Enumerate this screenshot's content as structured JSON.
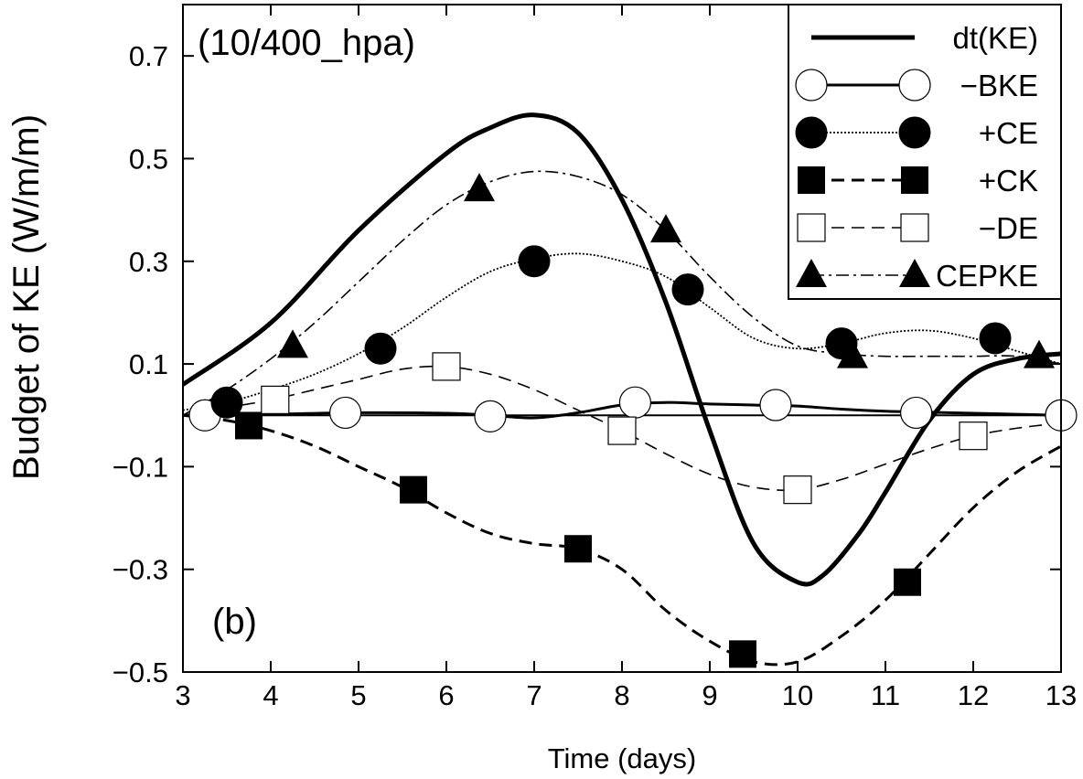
{
  "chart_data": {
    "type": "line",
    "annotation_top": "(10/400_hpa)",
    "panel_label": "(b)",
    "xlabel": "Time (days)",
    "ylabel": "Budget of KE (W/m/m)",
    "xlim": [
      3,
      13
    ],
    "ylim": [
      -0.5,
      0.8
    ],
    "xticks": [
      3,
      4,
      5,
      6,
      7,
      8,
      9,
      10,
      11,
      12,
      13
    ],
    "yticks": [
      -0.5,
      -0.3,
      -0.1,
      0.1,
      0.3,
      0.5,
      0.7
    ],
    "ytick_labels": [
      "−0.5",
      "−0.3",
      "−0.1",
      "0.1",
      "0.3",
      "0.5",
      "0.7"
    ],
    "zero_line": true,
    "legend_position": "top-right",
    "series": [
      {
        "name": "dt(KE)",
        "style": "solid-thick",
        "marker": "none",
        "x": [
          3.0,
          4.0,
          5.0,
          6.0,
          6.5,
          7.0,
          7.5,
          8.0,
          8.5,
          9.0,
          9.5,
          10.0,
          10.3,
          10.7,
          11.0,
          11.5,
          12.0,
          12.5,
          13.0
        ],
        "y": [
          0.06,
          0.18,
          0.36,
          0.51,
          0.56,
          0.585,
          0.55,
          0.42,
          0.22,
          -0.03,
          -0.25,
          -0.325,
          -0.31,
          -0.23,
          -0.15,
          -0.01,
          0.08,
          0.11,
          0.12
        ]
      },
      {
        "name": "−BKE",
        "style": "solid-medium",
        "marker": "open-circle",
        "x": [
          3.0,
          3.5,
          4.0,
          5.0,
          6.0,
          6.5,
          7.0,
          7.5,
          8.0,
          8.5,
          9.0,
          9.5,
          10.0,
          10.5,
          11.0,
          11.5,
          12.0,
          12.5,
          13.0
        ],
        "y": [
          0.0,
          0.0,
          0.002,
          0.005,
          0.004,
          0.0,
          -0.005,
          0.005,
          0.02,
          0.025,
          0.022,
          0.02,
          0.018,
          0.012,
          0.008,
          0.006,
          0.004,
          0.002,
          0.0
        ],
        "markers_x": [
          3.25,
          4.85,
          6.5,
          8.15,
          9.75,
          11.35,
          13.0
        ],
        "markers_y": [
          0.0,
          0.005,
          -0.002,
          0.025,
          0.02,
          0.005,
          0.0
        ]
      },
      {
        "name": "+CE",
        "style": "dotted",
        "marker": "filled-circle",
        "x": [
          3.0,
          3.5,
          4.0,
          4.5,
          5.0,
          5.5,
          6.0,
          6.5,
          7.0,
          7.5,
          8.0,
          8.5,
          9.0,
          9.5,
          10.0,
          10.5,
          11.0,
          11.5,
          12.0,
          12.5,
          13.0
        ],
        "y": [
          0.01,
          0.025,
          0.05,
          0.08,
          0.12,
          0.17,
          0.23,
          0.28,
          0.305,
          0.315,
          0.3,
          0.27,
          0.21,
          0.15,
          0.13,
          0.14,
          0.16,
          0.165,
          0.15,
          0.125,
          0.1
        ],
        "markers_x": [
          3.5,
          5.25,
          7.0,
          8.75,
          10.5,
          12.25
        ],
        "markers_y": [
          0.025,
          0.13,
          0.3,
          0.245,
          0.14,
          0.15
        ]
      },
      {
        "name": "+CK",
        "style": "dashed-thick",
        "marker": "filled-square",
        "x": [
          3.0,
          3.5,
          4.0,
          4.5,
          5.0,
          5.5,
          6.0,
          6.5,
          7.0,
          7.5,
          8.0,
          8.5,
          9.0,
          9.5,
          10.0,
          10.5,
          11.0,
          11.5,
          12.0,
          12.5,
          13.0
        ],
        "y": [
          0.0,
          -0.01,
          -0.03,
          -0.06,
          -0.1,
          -0.14,
          -0.19,
          -0.23,
          -0.25,
          -0.26,
          -0.3,
          -0.38,
          -0.44,
          -0.48,
          -0.48,
          -0.43,
          -0.36,
          -0.27,
          -0.18,
          -0.11,
          -0.06
        ],
        "markers_x": [
          3.75,
          5.625,
          7.5,
          9.375,
          11.25
        ],
        "markers_y": [
          -0.02,
          -0.145,
          -0.26,
          -0.465,
          -0.325
        ]
      },
      {
        "name": "−DE",
        "style": "dashed-thin",
        "marker": "open-square",
        "x": [
          3.0,
          3.5,
          4.0,
          4.5,
          5.0,
          5.5,
          6.0,
          6.5,
          7.0,
          7.5,
          8.0,
          8.5,
          9.0,
          9.5,
          10.0,
          10.5,
          11.0,
          11.5,
          12.0,
          12.5,
          13.0
        ],
        "y": [
          0.0,
          0.015,
          0.03,
          0.05,
          0.07,
          0.09,
          0.095,
          0.08,
          0.05,
          0.01,
          -0.03,
          -0.075,
          -0.115,
          -0.14,
          -0.145,
          -0.125,
          -0.095,
          -0.065,
          -0.04,
          -0.025,
          -0.015
        ],
        "markers_x": [
          4.05,
          6.0,
          8.0,
          10.0,
          12.0
        ],
        "markers_y": [
          0.03,
          0.095,
          -0.03,
          -0.145,
          -0.04
        ]
      },
      {
        "name": "CEPKE",
        "style": "dash-dot",
        "marker": "filled-triangle",
        "x": [
          3.0,
          3.5,
          4.0,
          4.5,
          5.0,
          5.5,
          6.0,
          6.5,
          7.0,
          7.5,
          8.0,
          8.5,
          9.0,
          9.5,
          10.0,
          10.5,
          11.0,
          11.5,
          12.0,
          12.5,
          13.0
        ],
        "y": [
          0.0,
          0.05,
          0.11,
          0.18,
          0.26,
          0.34,
          0.41,
          0.455,
          0.475,
          0.465,
          0.43,
          0.36,
          0.27,
          0.19,
          0.135,
          0.12,
          0.115,
          0.115,
          0.115,
          0.115,
          0.1
        ],
        "markers_x": [
          4.25,
          6.375,
          8.5,
          10.625,
          12.75
        ],
        "markers_y": [
          0.135,
          0.44,
          0.36,
          0.115,
          0.115
        ]
      }
    ]
  }
}
